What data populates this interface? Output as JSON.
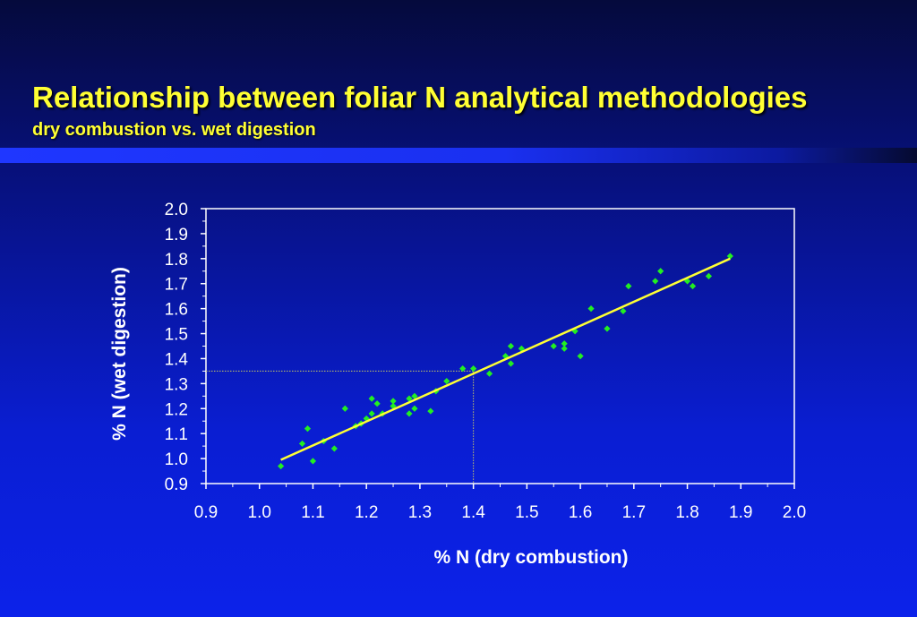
{
  "header": {
    "title": "Relationship between foliar N analytical methodologies",
    "subtitle": "dry combustion vs. wet digestion"
  },
  "colors": {
    "title": "#ffff33",
    "points": "#22ee22",
    "fit_line": "#ffff33",
    "guide_line": "#c8c864",
    "axes": "#ffffff"
  },
  "chart_data": {
    "type": "scatter",
    "xlabel": "% N (dry combustion)",
    "ylabel": "% N (wet digestion)",
    "xlim": [
      0.9,
      2.0
    ],
    "ylim": [
      0.9,
      2.0
    ],
    "xticks": [
      "0.9",
      "1.0",
      "1.1",
      "1.2",
      "1.3",
      "1.4",
      "1.5",
      "1.6",
      "1.7",
      "1.8",
      "1.9",
      "2.0"
    ],
    "yticks": [
      "0.9",
      "1.0",
      "1.1",
      "1.2",
      "1.3",
      "1.4",
      "1.5",
      "1.6",
      "1.7",
      "1.8",
      "1.9",
      "2.0"
    ],
    "grid": false,
    "points": [
      [
        1.04,
        0.97
      ],
      [
        1.08,
        1.06
      ],
      [
        1.09,
        1.12
      ],
      [
        1.1,
        0.99
      ],
      [
        1.12,
        1.07
      ],
      [
        1.14,
        1.04
      ],
      [
        1.16,
        1.2
      ],
      [
        1.18,
        1.13
      ],
      [
        1.19,
        1.14
      ],
      [
        1.2,
        1.16
      ],
      [
        1.21,
        1.18
      ],
      [
        1.21,
        1.24
      ],
      [
        1.22,
        1.22
      ],
      [
        1.23,
        1.18
      ],
      [
        1.25,
        1.21
      ],
      [
        1.25,
        1.23
      ],
      [
        1.28,
        1.24
      ],
      [
        1.28,
        1.18
      ],
      [
        1.29,
        1.2
      ],
      [
        1.29,
        1.25
      ],
      [
        1.32,
        1.19
      ],
      [
        1.33,
        1.27
      ],
      [
        1.35,
        1.31
      ],
      [
        1.38,
        1.36
      ],
      [
        1.4,
        1.36
      ],
      [
        1.43,
        1.34
      ],
      [
        1.46,
        1.41
      ],
      [
        1.47,
        1.45
      ],
      [
        1.47,
        1.38
      ],
      [
        1.49,
        1.44
      ],
      [
        1.55,
        1.45
      ],
      [
        1.57,
        1.46
      ],
      [
        1.57,
        1.44
      ],
      [
        1.59,
        1.51
      ],
      [
        1.6,
        1.41
      ],
      [
        1.62,
        1.6
      ],
      [
        1.65,
        1.52
      ],
      [
        1.68,
        1.59
      ],
      [
        1.69,
        1.69
      ],
      [
        1.74,
        1.71
      ],
      [
        1.75,
        1.75
      ],
      [
        1.8,
        1.71
      ],
      [
        1.81,
        1.69
      ],
      [
        1.84,
        1.73
      ],
      [
        1.88,
        1.81
      ]
    ],
    "fit_line": [
      [
        1.04,
        0.995
      ],
      [
        1.88,
        1.8
      ]
    ],
    "guide_point": [
      1.4,
      1.35
    ]
  }
}
